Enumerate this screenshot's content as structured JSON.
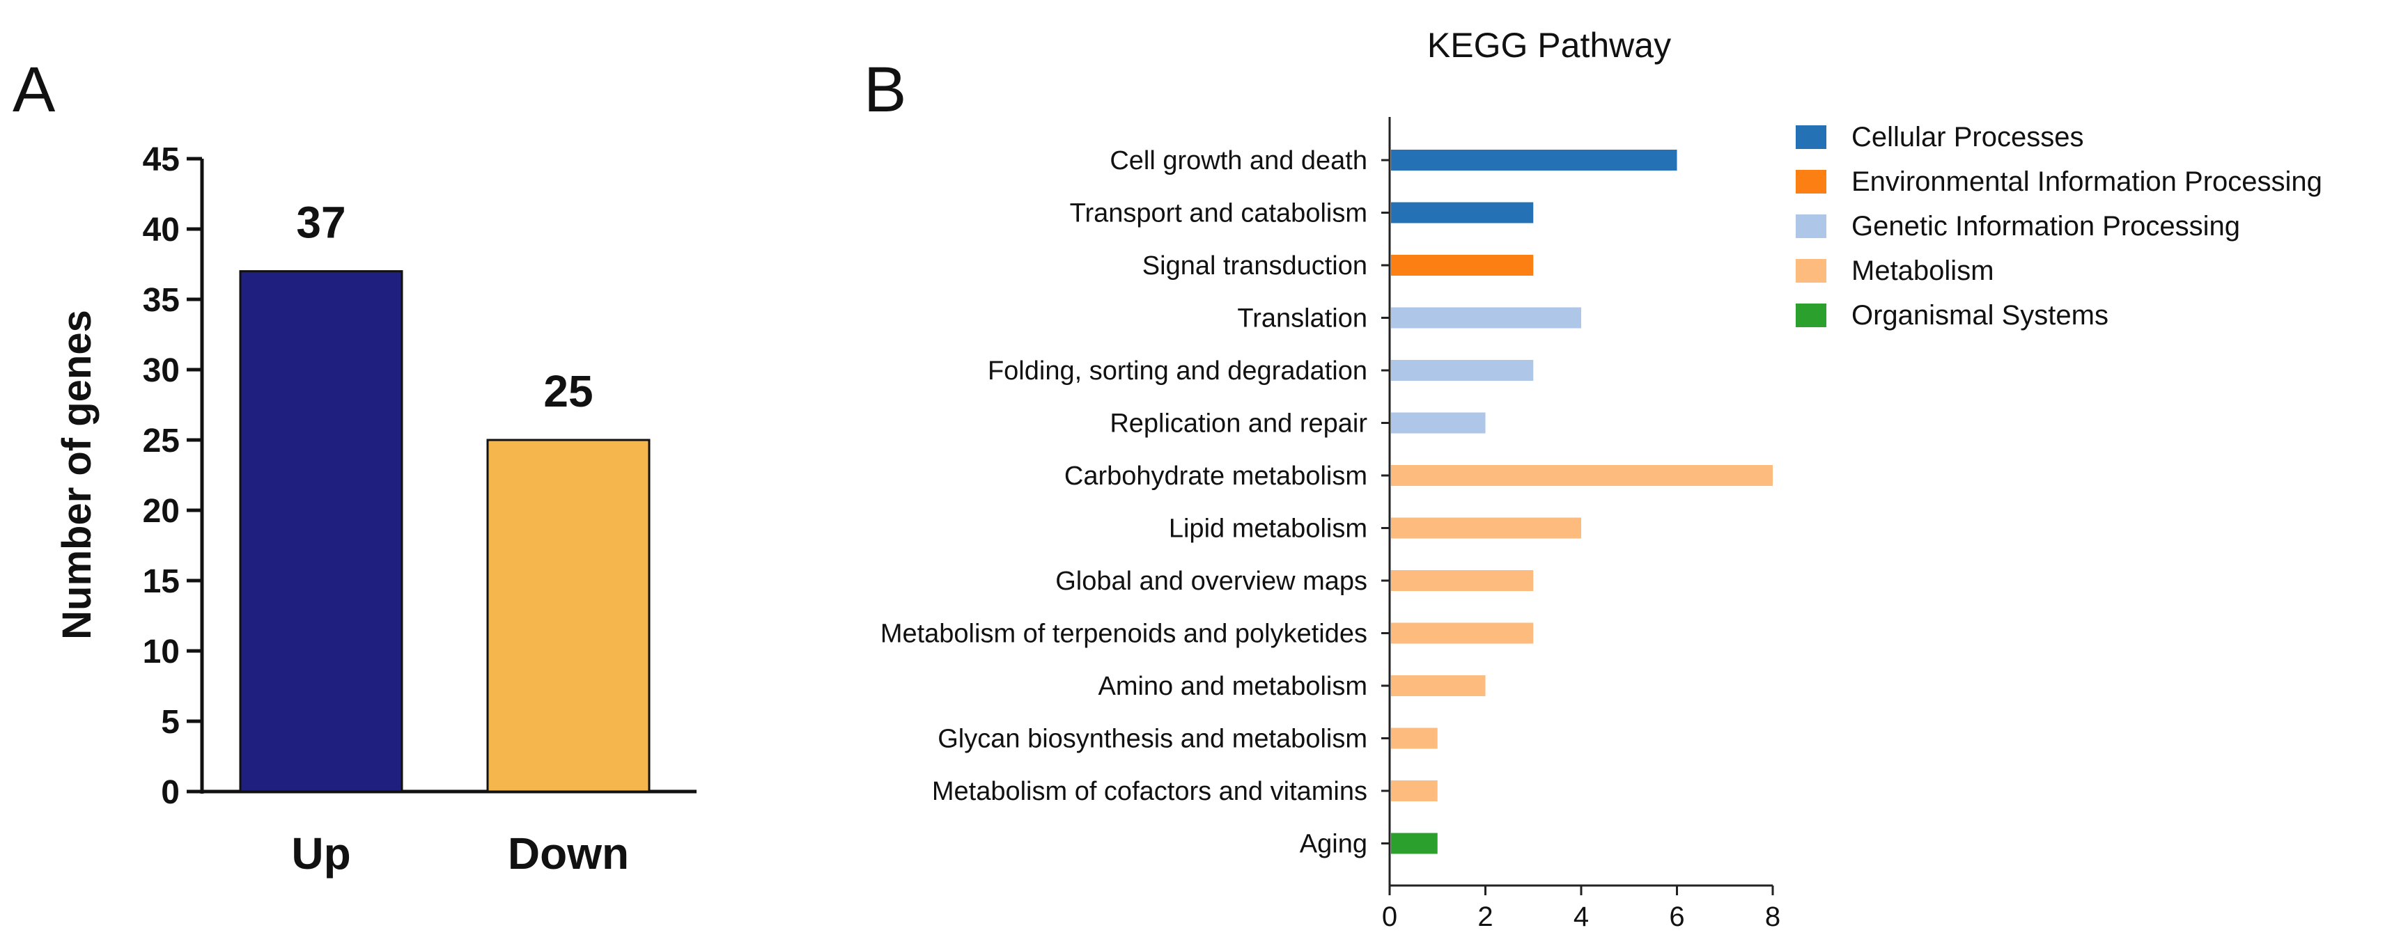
{
  "panel_a_label": "A",
  "panel_b_label": "B",
  "chart_data": [
    {
      "type": "bar",
      "title": "",
      "xlabel": "",
      "ylabel": "Number of genes",
      "ylim": [
        0,
        45
      ],
      "yticks": [
        0,
        5,
        10,
        15,
        20,
        25,
        30,
        35,
        40,
        45
      ],
      "categories": [
        "Up",
        "Down"
      ],
      "values": [
        37,
        25
      ],
      "value_labels": [
        "37",
        "25"
      ],
      "colors": [
        "#1f1f7f",
        "#f5b64e"
      ],
      "grid": false
    },
    {
      "type": "bar",
      "orientation": "horizontal",
      "title": "KEGG Pathway",
      "xlabel": "",
      "ylabel": "",
      "xlim": [
        0,
        8
      ],
      "xticks": [
        0,
        2,
        4,
        6,
        8
      ],
      "categories": [
        "Cell growth and death",
        "Transport and catabolism",
        "Signal transduction",
        "Translation",
        "Folding, sorting and degradation",
        "Replication and repair",
        "Carbohydrate metabolism",
        "Lipid metabolism",
        "Global and overview maps",
        "Metabolism of terpenoids and polyketides",
        "Amino and metabolism",
        "Glycan biosynthesis and metabolism",
        "Metabolism of cofactors and vitamins",
        "Aging"
      ],
      "values": [
        6,
        3,
        3,
        4,
        3,
        2,
        8,
        4,
        3,
        3,
        2,
        1,
        1,
        1
      ],
      "groups": [
        "Cellular Processes",
        "Cellular Processes",
        "Environmental Information Processing",
        "Genetic Information Processing",
        "Genetic Information Processing",
        "Genetic Information Processing",
        "Metabolism",
        "Metabolism",
        "Metabolism",
        "Metabolism",
        "Metabolism",
        "Metabolism",
        "Metabolism",
        "Organismal Systems"
      ],
      "legend": [
        {
          "label": "Cellular Processes",
          "color": "#2471b5"
        },
        {
          "label": "Environmental Information Processing",
          "color": "#fb7f12"
        },
        {
          "label": "Genetic Information Processing",
          "color": "#aec6e8"
        },
        {
          "label": "Metabolism",
          "color": "#fdbb7e"
        },
        {
          "label": "Organismal Systems",
          "color": "#2ca02c"
        }
      ],
      "legend_position": "top-right",
      "grid": false
    }
  ]
}
